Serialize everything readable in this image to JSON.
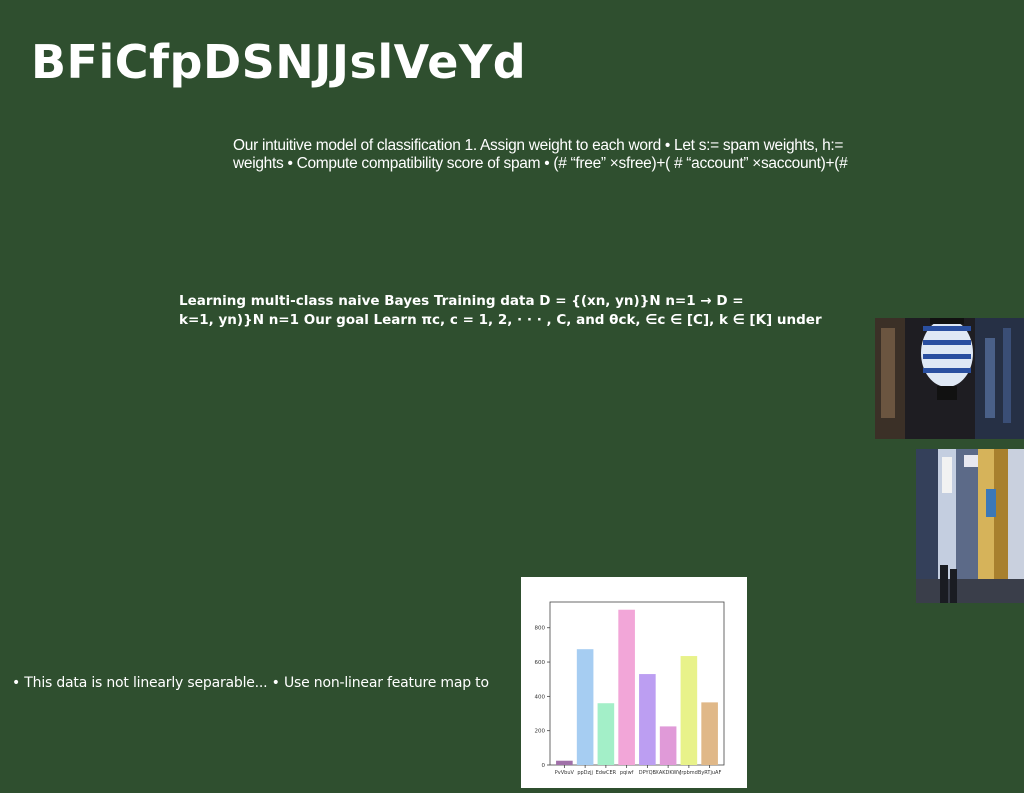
{
  "slide": {
    "title": "BFiCfpDSNJJslVeYd",
    "text1": [
      "Our intuitive model of classification 1. Assign weight to each word • Let s:= spam weights, h:=",
      "weights • Compute compatibility score of spam • (# “free” ×sfree)+( # “account” ×saccount)+(#"
    ],
    "text2": [
      "Learning multi-class naive Bayes Training data D = {(xn, yn)}N n=1 → D =",
      "k=1, yn)}N n=1 Our goal Learn πc, c = 1, 2, · · · , C, and θck, ∈c ∈ [C], k ∈ [K] under"
    ],
    "bullets": "• This data is not linearly separable... • Use non-linear feature map to"
  },
  "images": {
    "photo1": "lantern-street-photo",
    "photo2": "shop-street-photo"
  },
  "chart_data": {
    "type": "bar",
    "categories": [
      "PvVbuV",
      "ppDzjj",
      "EdwCER",
      "pqiwf",
      "DPYQB",
      "XAKDKWV",
      "Jrpbmd",
      "ByRTjuAF"
    ],
    "values": [
      25,
      675,
      360,
      905,
      530,
      225,
      635,
      365
    ],
    "colors": [
      "#a070a8",
      "#a6cdf2",
      "#a3efc8",
      "#f2a6d8",
      "#bc9ef2",
      "#e09ad8",
      "#e8f28a",
      "#e0b888"
    ],
    "yticks": [
      "0",
      "200",
      "400",
      "600",
      "800"
    ],
    "ylim": [
      0,
      950
    ],
    "title": "",
    "xlabel": "",
    "ylabel": ""
  }
}
